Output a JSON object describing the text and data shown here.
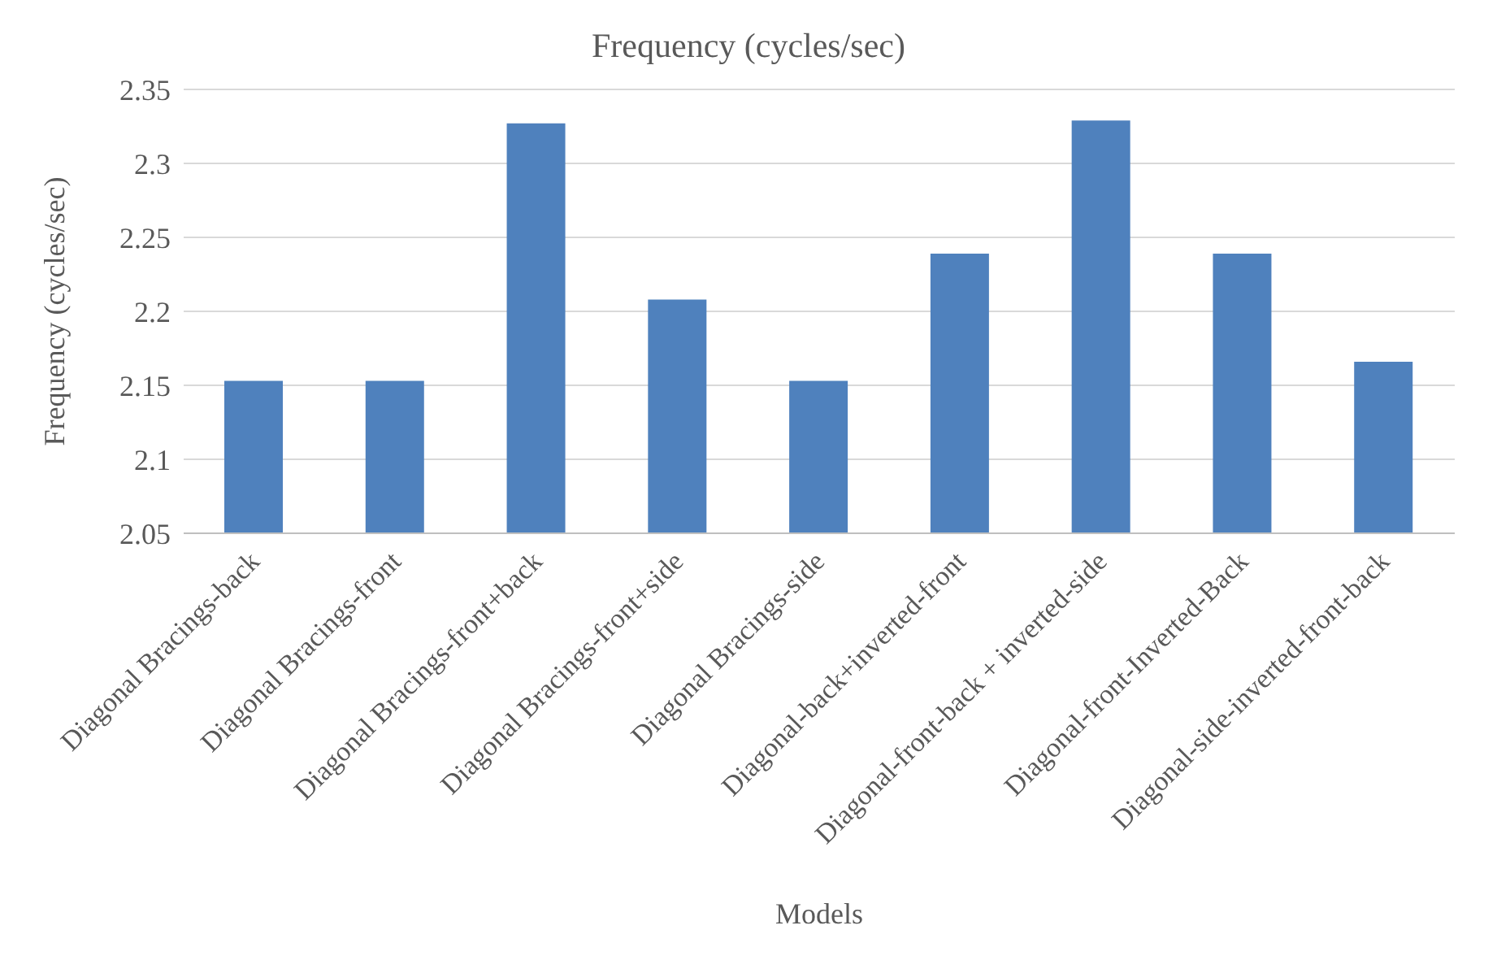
{
  "chart_data": {
    "type": "bar",
    "title": "Frequency (cycles/sec)",
    "xlabel": "Models",
    "ylabel": "Frequency (cycles/sec)",
    "categories": [
      "Diagonal Bracings-back",
      "Diagonal Bracings-front",
      "Diagonal Bracings-front+back",
      "Diagonal Bracings-front+side",
      "Diagonal Bracings-side",
      "Diagonal-back+inverted-front",
      "Diagonal-front-back + inverted-side",
      "Diagonal-front-Inverted-Back",
      "Diagonal-side-inverted-front-back"
    ],
    "values": [
      2.153,
      2.153,
      2.327,
      2.208,
      2.153,
      2.239,
      2.329,
      2.239,
      2.166
    ],
    "color": "#4f81bd",
    "ylim": [
      2.05,
      2.35
    ],
    "yticks": [
      2.05,
      2.1,
      2.15,
      2.2,
      2.25,
      2.3,
      2.35
    ],
    "grid": "y"
  }
}
